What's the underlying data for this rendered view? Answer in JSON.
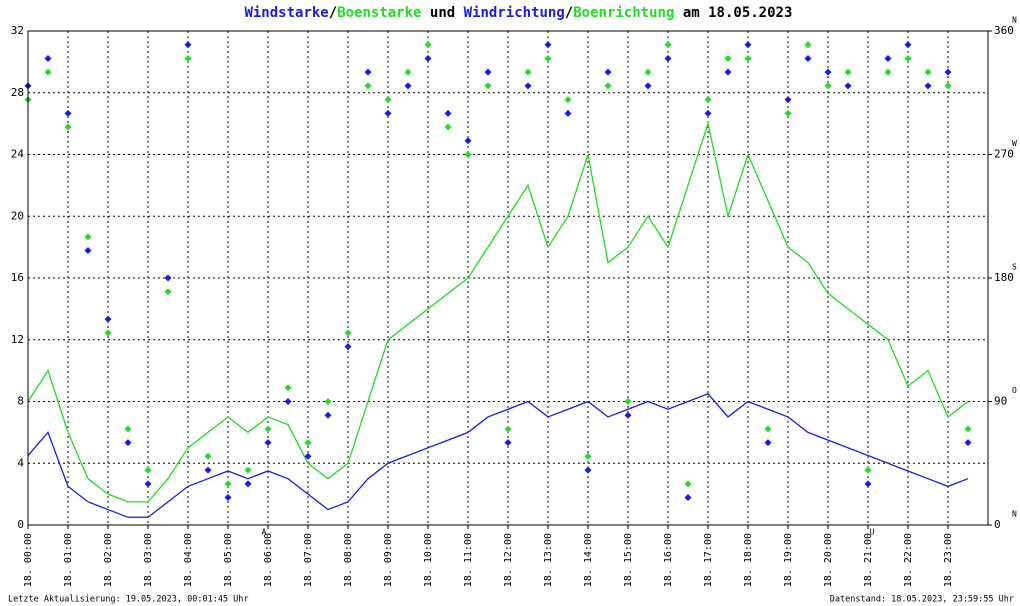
{
  "chart_data": {
    "type": "wind",
    "title_parts": [
      "/",
      " und ",
      "/",
      " am 18.05.2023"
    ],
    "footer_left": "Letzte Aktualisierung: 19.05.2023, 00:01:45 Uhr",
    "footer_right": "Datenstand: 18.05.2023, 23:59:55 Uhr",
    "x": [
      0,
      0.5,
      1,
      1.5,
      2,
      2.5,
      3,
      3.5,
      4,
      4.5,
      5,
      5.5,
      6,
      6.5,
      7,
      7.5,
      8,
      8.5,
      9,
      9.5,
      10,
      10.5,
      11,
      11.5,
      12,
      12.5,
      13,
      13.5,
      14,
      14.5,
      15,
      15.5,
      16,
      16.5,
      17,
      17.5,
      18,
      18.5,
      19,
      19.5,
      20,
      20.5,
      21,
      21.5,
      22,
      22.5,
      23,
      23.5
    ],
    "xlim": [
      0,
      24
    ],
    "xticks": [
      {
        "value": 0,
        "label": "18. 00:00"
      },
      {
        "value": 1,
        "label": "18. 01:00"
      },
      {
        "value": 2,
        "label": "18. 02:00"
      },
      {
        "value": 3,
        "label": "18. 03:00"
      },
      {
        "value": 4,
        "label": "18. 04:00"
      },
      {
        "value": 5,
        "label": "18. 05:00"
      },
      {
        "value": 6,
        "label": "18. 06:00"
      },
      {
        "value": 7,
        "label": "18. 07:00"
      },
      {
        "value": 8,
        "label": "18. 08:00"
      },
      {
        "value": 9,
        "label": "18. 09:00"
      },
      {
        "value": 10,
        "label": "18. 10:00"
      },
      {
        "value": 11,
        "label": "18. 11:00"
      },
      {
        "value": 12,
        "label": "18. 12:00"
      },
      {
        "value": 13,
        "label": "18. 13:00"
      },
      {
        "value": 14,
        "label": "18. 14:00"
      },
      {
        "value": 15,
        "label": "18. 15:00"
      },
      {
        "value": 16,
        "label": "18. 16:00"
      },
      {
        "value": 17,
        "label": "18. 17:00"
      },
      {
        "value": 18,
        "label": "18. 18:00"
      },
      {
        "value": 19,
        "label": "18. 19:00"
      },
      {
        "value": 20,
        "label": "18. 20:00"
      },
      {
        "value": 21,
        "label": "18. 21:00"
      },
      {
        "value": 22,
        "label": "18. 22:00"
      },
      {
        "value": 23,
        "label": "18. 23:00"
      }
    ],
    "ylim": [
      0,
      32
    ],
    "yticks": [
      0,
      4,
      8,
      12,
      16,
      20,
      24,
      28,
      32
    ],
    "y2lim": [
      0,
      360
    ],
    "y2ticks": [
      0,
      90,
      180,
      270,
      360
    ],
    "y2tick_letters": [
      "N",
      "O",
      "S",
      "W",
      "N"
    ],
    "grid": true,
    "annotations": [
      {
        "x": 5.9,
        "label": "A",
        "color": "#ff0000"
      },
      {
        "x": 21.1,
        "label": "U",
        "color": "#ff0000"
      }
    ],
    "series": [
      {
        "name": "Boenstarke",
        "color": "#22dd22",
        "kind": "line",
        "values": [
          8,
          10,
          6,
          3,
          2,
          1.5,
          1.5,
          3,
          5,
          6,
          7,
          6,
          7,
          6.5,
          4,
          3,
          4,
          8,
          12,
          13,
          14,
          15,
          16,
          18,
          20,
          22,
          18,
          20,
          24,
          17,
          18,
          20,
          18,
          22,
          26,
          20,
          24,
          21,
          18,
          17,
          15,
          14,
          13,
          12,
          9,
          10,
          7,
          8
        ]
      },
      {
        "name": "Windstarke",
        "color": "#1a1aee",
        "kind": "line",
        "values": [
          4.5,
          6,
          2.5,
          1.5,
          1,
          0.5,
          0.5,
          1.5,
          2.5,
          3,
          3.5,
          3,
          3.5,
          3,
          2,
          1,
          1.5,
          3,
          4,
          4.5,
          5,
          5.5,
          6,
          7,
          7.5,
          8,
          7,
          7.5,
          8,
          7,
          7.5,
          8,
          7.5,
          8,
          8.5,
          7,
          8,
          7.5,
          7,
          6,
          5.5,
          5,
          4.5,
          4,
          3.5,
          3,
          2.5,
          3
        ]
      },
      {
        "name": "Boenrichtung",
        "color": "#22dd22",
        "kind": "points",
        "axis": "y2",
        "values": [
          310,
          330,
          290,
          210,
          140,
          70,
          40,
          170,
          340,
          50,
          30,
          40,
          70,
          100,
          60,
          90,
          140,
          320,
          310,
          330,
          350,
          290,
          270,
          320,
          70,
          330,
          340,
          310,
          50,
          320,
          90,
          330,
          350,
          30,
          310,
          340,
          340,
          70,
          300,
          350,
          320,
          330,
          40,
          330,
          340,
          330,
          320,
          70
        ]
      },
      {
        "name": "Windrichtung",
        "color": "#1a1aee",
        "kind": "points",
        "axis": "y2",
        "values": [
          320,
          340,
          300,
          200,
          150,
          60,
          30,
          180,
          350,
          40,
          20,
          30,
          60,
          90,
          50,
          80,
          130,
          330,
          300,
          320,
          340,
          300,
          280,
          330,
          60,
          320,
          350,
          300,
          40,
          330,
          80,
          320,
          340,
          20,
          300,
          330,
          350,
          60,
          310,
          340,
          330,
          320,
          30,
          340,
          350,
          320,
          330,
          60
        ]
      }
    ]
  }
}
